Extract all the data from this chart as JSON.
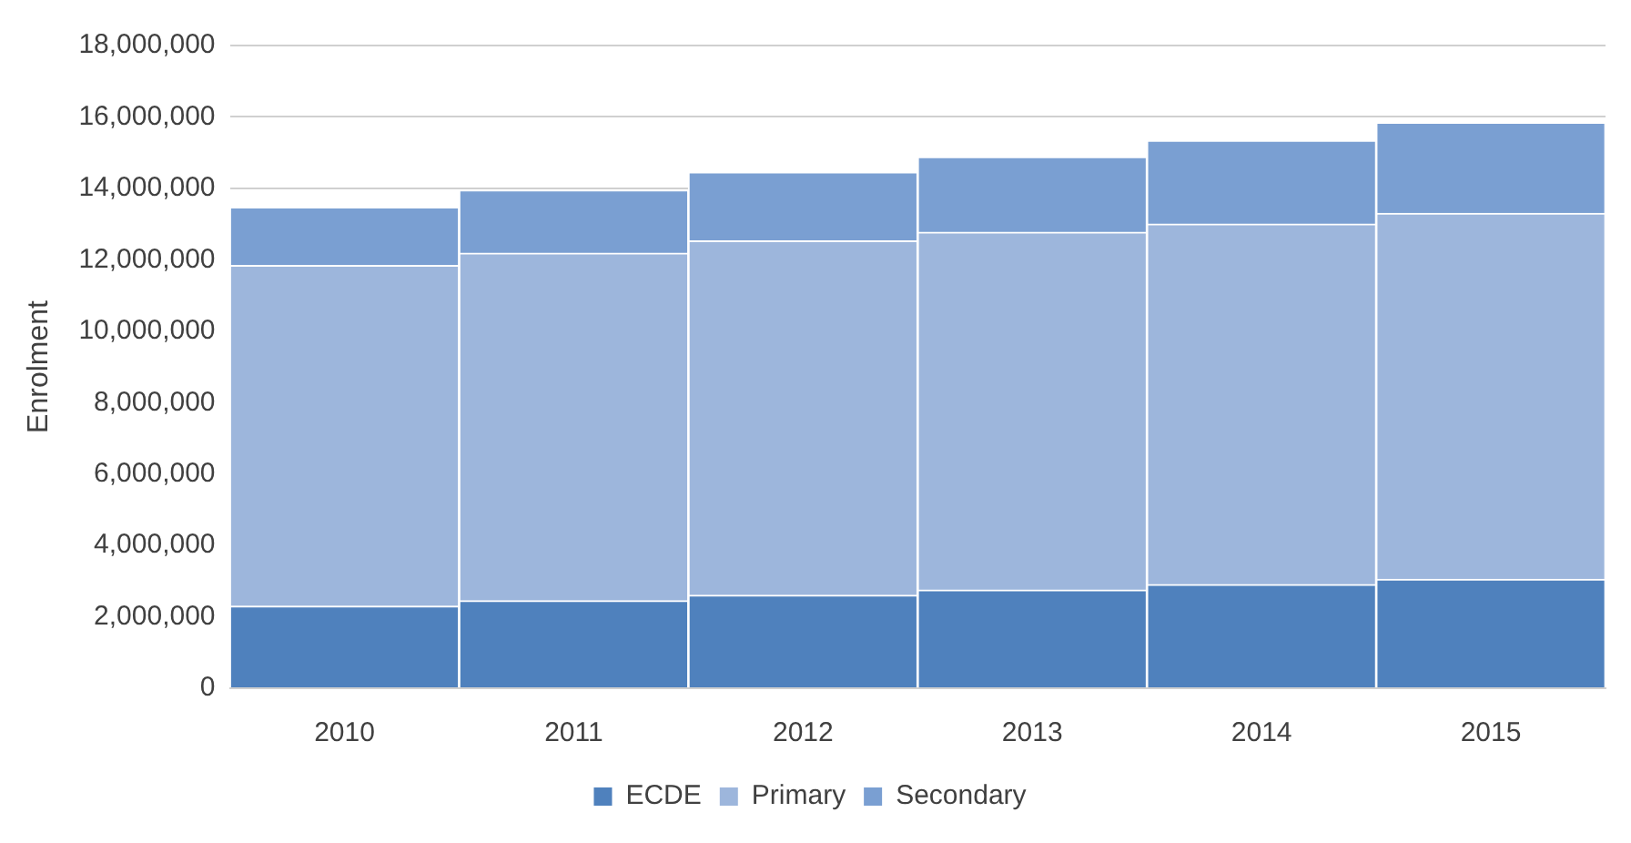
{
  "chart_data": {
    "type": "bar",
    "stacked": true,
    "ylabel": "Enrolment",
    "categories": [
      "2010",
      "2011",
      "2012",
      "2013",
      "2014",
      "2015"
    ],
    "series": [
      {
        "name": "ECDE",
        "color": "#4f81bd",
        "values": [
          2300000,
          2450000,
          2600000,
          2750000,
          2900000,
          3050000
        ]
      },
      {
        "name": "Primary",
        "color": "#9db6dc",
        "values": [
          9540000,
          9730000,
          9930000,
          10020000,
          10100000,
          10250000
        ]
      },
      {
        "name": "Secondary",
        "color": "#7a9fd2",
        "values": [
          1630000,
          1770000,
          1920000,
          2110000,
          2340000,
          2540000
        ]
      }
    ],
    "ylim": [
      0,
      18000000
    ],
    "yticks": [
      0,
      {
        "value": 2000000,
        "label": "2,000,000"
      },
      {
        "value": 4000000,
        "label": "4,000,000"
      },
      {
        "value": 6000000,
        "label": "6,000,000"
      },
      {
        "value": 8000000,
        "label": "8,000,000"
      },
      {
        "value": 10000000,
        "label": "10,000,000"
      },
      {
        "value": 12000000,
        "label": "12,000,000"
      },
      {
        "value": 14000000,
        "label": "14,000,000"
      },
      {
        "value": 16000000,
        "label": "16,000,000"
      },
      {
        "value": 18000000,
        "label": "18,000,000"
      }
    ],
    "grid": "y",
    "legend": "bottom"
  }
}
